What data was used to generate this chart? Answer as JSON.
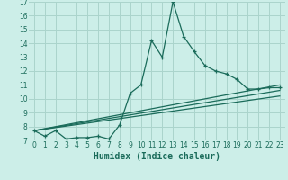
{
  "xlabel": "Humidex (Indice chaleur)",
  "ylabel": "",
  "bg_color": "#cceee8",
  "grid_color": "#aad4cc",
  "line_color": "#1a6b5a",
  "xlim": [
    -0.5,
    23.5
  ],
  "ylim": [
    7,
    17
  ],
  "xticks": [
    0,
    1,
    2,
    3,
    4,
    5,
    6,
    7,
    8,
    9,
    10,
    11,
    12,
    13,
    14,
    15,
    16,
    17,
    18,
    19,
    20,
    21,
    22,
    23
  ],
  "yticks": [
    7,
    8,
    9,
    10,
    11,
    12,
    13,
    14,
    15,
    16,
    17
  ],
  "series1_x": [
    0,
    1,
    2,
    3,
    4,
    5,
    6,
    7,
    8,
    9,
    10,
    11,
    12,
    13,
    14,
    15,
    16,
    17,
    18,
    19,
    20,
    21,
    22,
    23
  ],
  "series1_y": [
    7.7,
    7.3,
    7.7,
    7.1,
    7.2,
    7.2,
    7.3,
    7.1,
    8.1,
    10.4,
    11.0,
    14.2,
    13.0,
    17.0,
    14.5,
    13.4,
    12.4,
    12.0,
    11.8,
    11.4,
    10.7,
    10.7,
    10.8,
    10.8
  ],
  "series2_x": [
    0,
    23
  ],
  "series2_y": [
    7.7,
    11.0
  ],
  "series3_x": [
    0,
    23
  ],
  "series3_y": [
    7.7,
    10.2
  ],
  "series4_x": [
    0,
    23
  ],
  "series4_y": [
    7.7,
    10.6
  ],
  "font_color": "#1a6b5a",
  "tick_fontsize": 5.5,
  "label_fontsize": 7.0
}
